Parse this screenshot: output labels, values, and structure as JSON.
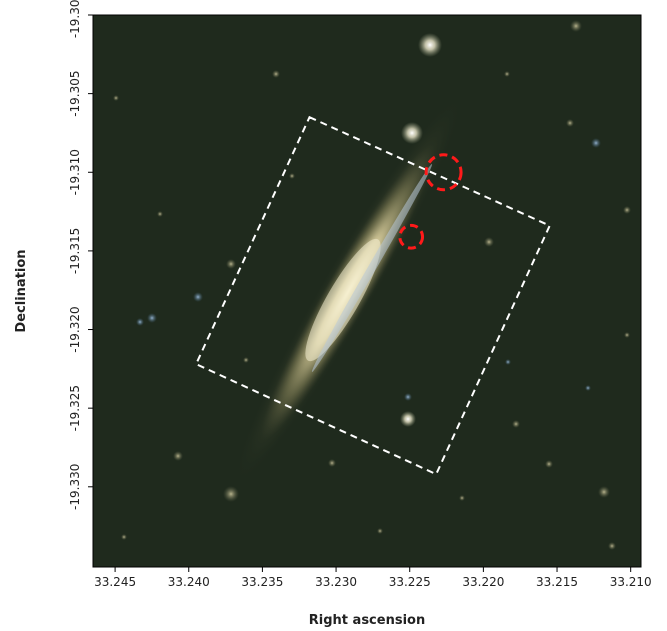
{
  "image": {
    "kind": "sky image of an edge-on galaxy with overlaid region markers",
    "background_color": "#1f2a1d",
    "galaxy_color": "#e8dfb7",
    "dust_lane_color": "#b8c8d9",
    "footprint_color": "#ffffff",
    "marker_color": "#ff1a1a"
  },
  "axes": {
    "xlabel": "Right ascension",
    "ylabel": "Declination",
    "xlim": [
      33.2465,
      33.2093
    ],
    "ylim": [
      -19.3351,
      -19.3
    ],
    "x_ticks": [
      33.245,
      33.24,
      33.235,
      33.23,
      33.225,
      33.22,
      33.215,
      33.21
    ],
    "x_tick_labels": [
      "33.245",
      "33.240",
      "33.235",
      "33.230",
      "33.225",
      "33.220",
      "33.215",
      "33.210"
    ],
    "y_ticks": [
      -19.3,
      -19.305,
      -19.31,
      -19.315,
      -19.32,
      -19.325,
      -19.33
    ],
    "y_tick_labels": [
      "-19.300",
      "-19.305",
      "-19.310",
      "-19.315",
      "-19.320",
      "-19.325",
      "-19.330"
    ]
  },
  "footprint": {
    "style": "dashed",
    "corners": [
      [
        33.2318,
        -19.3065
      ],
      [
        33.2155,
        -19.3134
      ],
      [
        33.2232,
        -19.3292
      ],
      [
        33.2395,
        -19.3222
      ]
    ]
  },
  "markers": [
    {
      "ra": 33.2227,
      "dec": -19.31,
      "radius_arcsec": 4.0,
      "style": "dashed"
    },
    {
      "ra": 33.2249,
      "dec": -19.3141,
      "radius_arcsec": 2.6,
      "style": "dashed"
    }
  ]
}
